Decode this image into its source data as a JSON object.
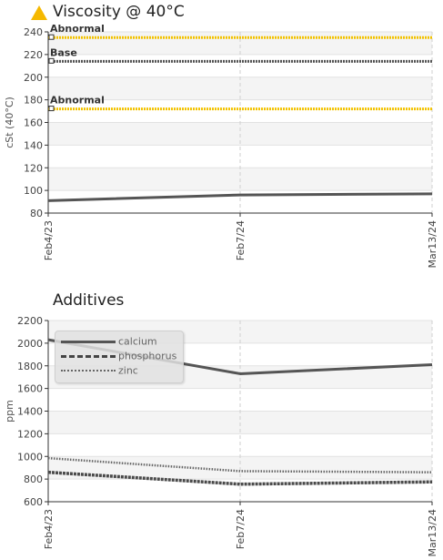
{
  "header": {
    "title": "Viscosity @ 40°C",
    "warning_icon": "warning-triangle-icon"
  },
  "colors": {
    "series": "#555555",
    "limit_abnormal": "#f2c200",
    "limit_base": "#555555",
    "warning": "#f5b800"
  },
  "chart_data": [
    {
      "type": "line",
      "title": "Viscosity @ 40°C",
      "ylabel": "cSt (40°C)",
      "xlabel": "",
      "ylim": [
        80,
        240
      ],
      "yticks": [
        80,
        100,
        120,
        140,
        160,
        180,
        200,
        220,
        240
      ],
      "categories": [
        "Feb4/23",
        "Feb7/24",
        "Mar13/24"
      ],
      "series": [
        {
          "values": [
            91,
            96,
            97
          ],
          "style": "solid"
        }
      ],
      "reference_lines": [
        {
          "label": "Abnormal",
          "value": 235,
          "color": "#f2c200"
        },
        {
          "label": "Base",
          "value": 214,
          "color": "#555555"
        },
        {
          "label": "Abnormal",
          "value": 172,
          "color": "#f2c200"
        }
      ],
      "grid": true
    },
    {
      "type": "line",
      "title": "Additives",
      "ylabel": "ppm",
      "xlabel": "",
      "ylim": [
        600,
        2200
      ],
      "yticks": [
        600,
        800,
        1000,
        1200,
        1400,
        1600,
        1800,
        2000,
        2200
      ],
      "categories": [
        "Feb4/23",
        "Feb7/24",
        "Mar13/24"
      ],
      "series": [
        {
          "name": "calcium",
          "values": [
            2030,
            1730,
            1810
          ],
          "style": "solid"
        },
        {
          "name": "phosphorus",
          "values": [
            860,
            755,
            775
          ],
          "style": "dashed"
        },
        {
          "name": "zinc",
          "values": [
            985,
            870,
            860
          ],
          "style": "dotted"
        }
      ],
      "legend": "top-left",
      "grid": true
    }
  ]
}
